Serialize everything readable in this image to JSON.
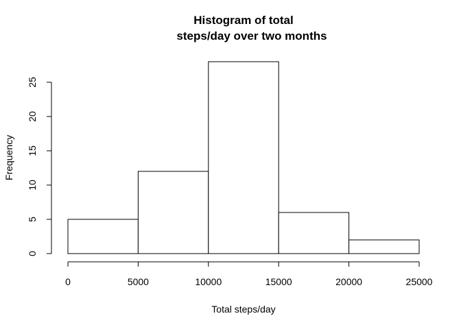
{
  "chart_data": {
    "type": "bar",
    "title_lines": [
      "Histogram of total",
      "steps/day over two months"
    ],
    "xlabel": "Total steps/day",
    "ylabel": "Frequency",
    "bins": [
      {
        "from": 0,
        "to": 5000,
        "count": 5
      },
      {
        "from": 5000,
        "to": 10000,
        "count": 12
      },
      {
        "from": 10000,
        "to": 15000,
        "count": 28
      },
      {
        "from": 15000,
        "to": 20000,
        "count": 6
      },
      {
        "from": 20000,
        "to": 25000,
        "count": 2
      }
    ],
    "xlim": [
      0,
      25000
    ],
    "ylim": [
      0,
      28
    ],
    "x_ticks": [
      0,
      5000,
      10000,
      15000,
      20000,
      25000
    ],
    "x_tick_labels": [
      "0",
      "5000",
      "10000",
      "15000",
      "20000",
      "25000"
    ],
    "y_ticks": [
      0,
      5,
      10,
      15,
      20,
      25
    ],
    "y_tick_labels": [
      "0",
      "5",
      "10",
      "15",
      "20",
      "25"
    ],
    "grid": false,
    "bar_fill": "#ffffff",
    "bar_stroke": "#000000"
  }
}
